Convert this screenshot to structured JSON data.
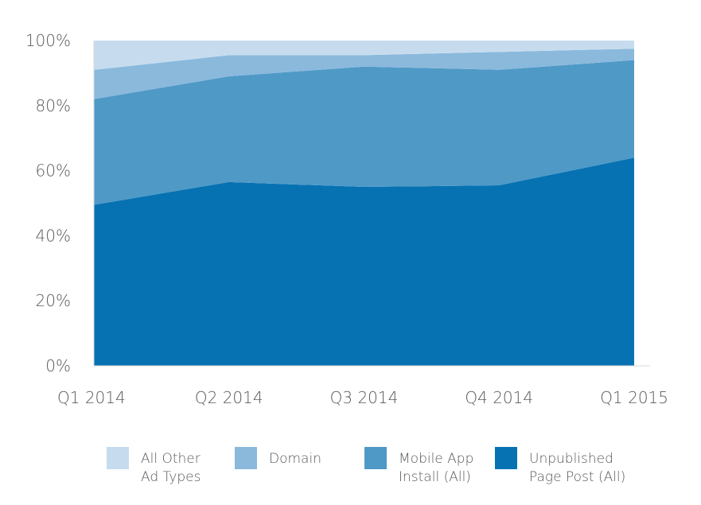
{
  "chart_data": {
    "type": "area",
    "stacked": true,
    "normalized": true,
    "categories": [
      "Q1 2014",
      "Q2 2014",
      "Q3 2014",
      "Q4 2014",
      "Q1 2015"
    ],
    "y_ticks": [
      "0%",
      "20%",
      "40%",
      "60%",
      "80%",
      "100%"
    ],
    "ylim": [
      0,
      100
    ],
    "grid": false,
    "legend_position": "bottom",
    "series": [
      {
        "name": "Unpublished Page Post (All)",
        "name_lines": [
          "Unpublished",
          "Page Post (All)"
        ],
        "color": "#0772b2",
        "values": [
          49.5,
          56.5,
          55,
          55.5,
          64
        ]
      },
      {
        "name": "Mobile App Install (All)",
        "name_lines": [
          "Mobile App",
          "Install (All)"
        ],
        "color": "#4f99c7",
        "values": [
          32.5,
          32.5,
          37,
          35.5,
          30
        ]
      },
      {
        "name": "Domain",
        "name_lines": [
          "Domain"
        ],
        "color": "#8ab9dc",
        "values": [
          9,
          6.5,
          3.5,
          5.5,
          3.5
        ]
      },
      {
        "name": "All Other Ad Types",
        "name_lines": [
          "All Other",
          "Ad Types"
        ],
        "color": "#c6dcee",
        "values": [
          9,
          4.5,
          4.5,
          3.5,
          2.5
        ]
      }
    ],
    "legend_order": [
      3,
      2,
      1,
      0
    ]
  }
}
